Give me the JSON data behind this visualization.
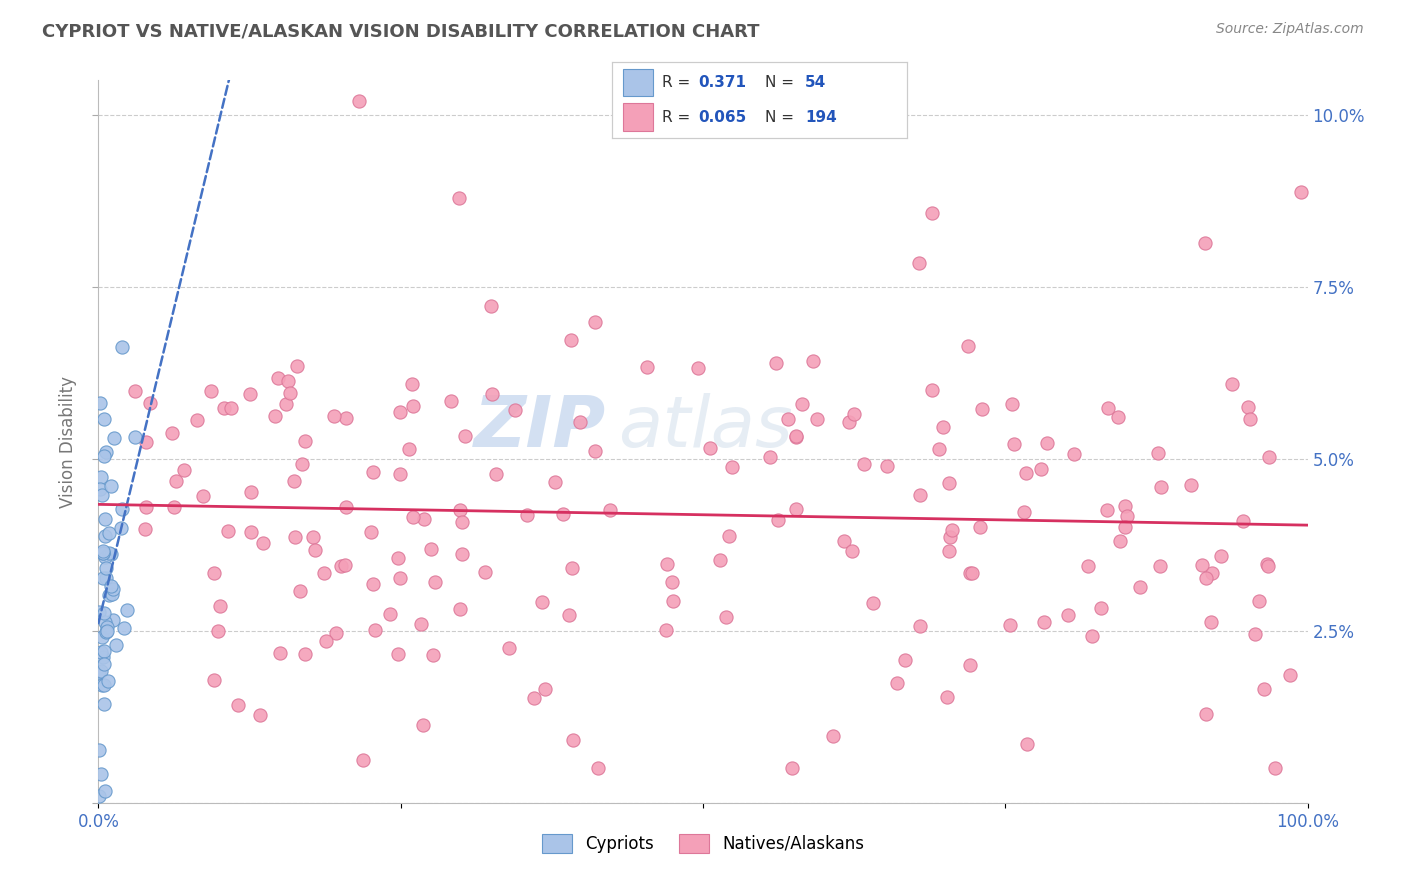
{
  "title": "CYPRIOT VS NATIVE/ALASKAN VISION DISABILITY CORRELATION CHART",
  "source": "Source: ZipAtlas.com",
  "ylabel": "Vision Disability",
  "xlim": [
    0.0,
    1.0
  ],
  "ylim": [
    0.0,
    0.105
  ],
  "cypriot_color": "#aac4e8",
  "cypriot_edge_color": "#6699cc",
  "native_color": "#f4a0b8",
  "native_edge_color": "#dd7799",
  "cypriot_line_color": "#4472c4",
  "native_line_color": "#d63060",
  "cypriot_r": 0.371,
  "cypriot_n": 54,
  "native_r": 0.065,
  "native_n": 194,
  "watermark": "ZIPatlas",
  "background_color": "#ffffff",
  "grid_color": "#cccccc",
  "title_color": "#555555",
  "source_color": "#888888",
  "tick_color": "#4472c4",
  "ylabel_color": "#777777"
}
